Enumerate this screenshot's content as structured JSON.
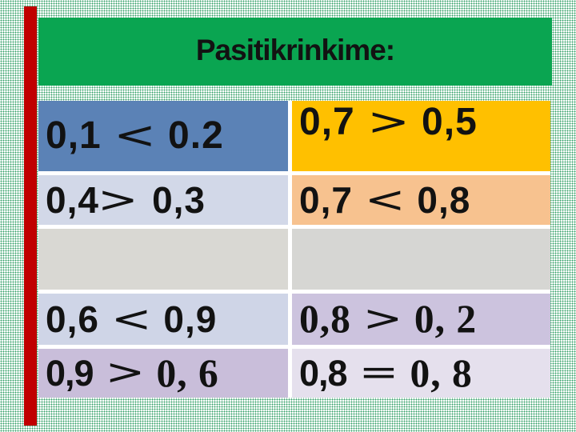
{
  "slide": {
    "title": "Pasitikrinkime:",
    "title_color": "#121212",
    "banner_color": "#0aa551",
    "accent_bar_color": "#c00000",
    "dot_pattern_color": "#2a9b60",
    "gap_color": "#ffffff"
  },
  "table": {
    "rows": [
      {
        "cells": [
          {
            "bg": "#5b82b6",
            "align": "center",
            "size": 48,
            "parts": [
              {
                "text": "0,1",
                "style": "sans"
              },
              {
                "text": " < ",
                "style": "sym"
              },
              {
                "text": "0.2",
                "style": "sans"
              }
            ]
          },
          {
            "bg": "#ffc000",
            "align": "top",
            "size": 48,
            "parts": [
              {
                "text": "0,7",
                "style": "sans"
              },
              {
                "text": " > ",
                "style": "sym"
              },
              {
                "text": "0,5",
                "style": "sans"
              }
            ]
          }
        ]
      },
      {
        "cells": [
          {
            "bg": "#d2d8e8",
            "align": "center",
            "size": 46,
            "parts": [
              {
                "text": "0,4",
                "style": "sans"
              },
              {
                "text": "> ",
                "style": "sym"
              },
              {
                "text": "0,3",
                "style": "sans"
              }
            ]
          },
          {
            "bg": "#f7c28f",
            "align": "center",
            "size": 46,
            "parts": [
              {
                "text": "0,7",
                "style": "sans"
              },
              {
                "text": " < ",
                "style": "sym"
              },
              {
                "text": "0,8",
                "style": "sans"
              }
            ]
          }
        ]
      },
      {
        "cells": [
          {
            "bg": "#d9d8d3",
            "align": "center",
            "size": 46,
            "parts": []
          },
          {
            "bg": "#d6d6d3",
            "align": "center",
            "size": 46,
            "parts": []
          }
        ]
      },
      {
        "cells": [
          {
            "bg": "#cfd5e7",
            "align": "center",
            "size": 46,
            "parts": [
              {
                "text": "0,6",
                "style": "sans"
              },
              {
                "text": " < ",
                "style": "sym"
              },
              {
                "text": "0,9",
                "style": "sans"
              }
            ]
          },
          {
            "bg": "#ccc3de",
            "align": "center",
            "size": 45,
            "parts": [
              {
                "text": "0,8",
                "style": "serif"
              },
              {
                "text": " > ",
                "style": "sym"
              },
              {
                "text": "0, 2",
                "style": "serif"
              }
            ]
          }
        ]
      },
      {
        "cells": [
          {
            "bg": "#c9beda",
            "align": "center",
            "size": 45,
            "parts": [
              {
                "text": "0,9",
                "style": "narrow"
              },
              {
                "text": " > ",
                "style": "sym"
              },
              {
                "text": "0, 6",
                "style": "serif"
              }
            ]
          },
          {
            "bg": "#e5e0ed",
            "align": "center",
            "size": 45,
            "parts": [
              {
                "text": "0,8",
                "style": "narrow"
              },
              {
                "text": " = ",
                "style": "sym"
              },
              {
                "text": "0, 8",
                "style": "serif"
              }
            ]
          }
        ]
      }
    ]
  }
}
